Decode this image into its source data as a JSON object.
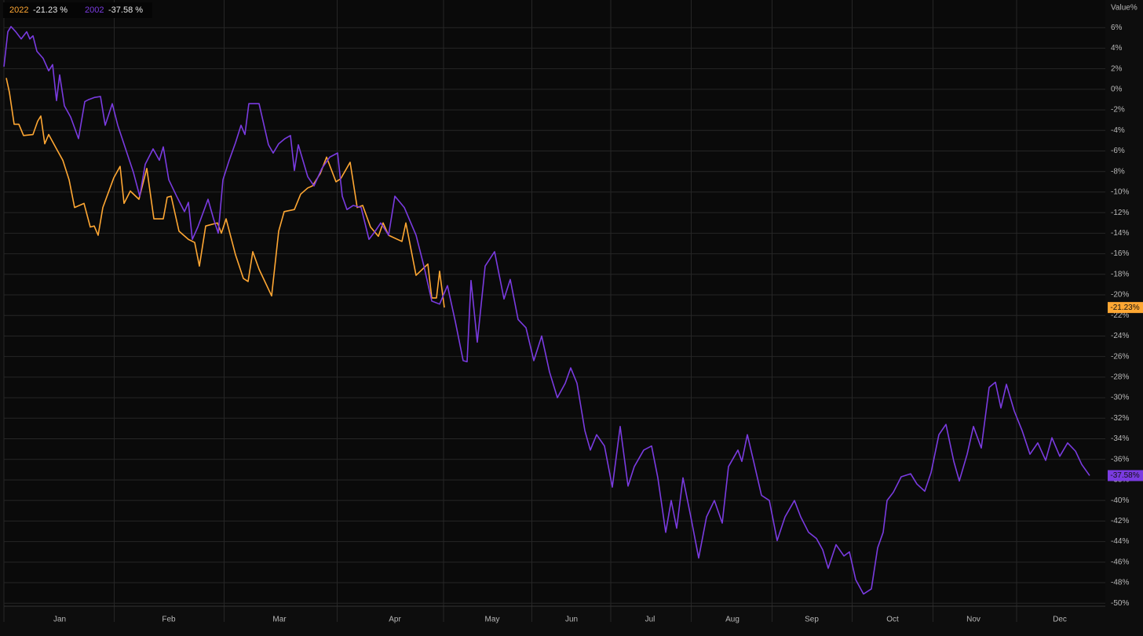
{
  "chart_data": {
    "type": "line",
    "y_label": "Value%",
    "xlim": [
      0,
      280.6
    ],
    "xticks": [
      {
        "value": 14.2,
        "label": "Jan"
      },
      {
        "value": 42,
        "label": "Feb"
      },
      {
        "value": 70.2,
        "label": "Mar"
      },
      {
        "value": 99.6,
        "label": "Apr"
      },
      {
        "value": 124.4,
        "label": "May"
      },
      {
        "value": 144.6,
        "label": "Jun"
      },
      {
        "value": 164.6,
        "label": "Jul"
      },
      {
        "value": 185.6,
        "label": "Aug"
      },
      {
        "value": 205.8,
        "label": "Sep"
      },
      {
        "value": 226.4,
        "label": "Oct"
      },
      {
        "value": 247,
        "label": "Nov"
      },
      {
        "value": 269,
        "label": "Dec"
      }
    ],
    "ylim": [
      8.686,
      -50.286
    ],
    "yticks": [
      {
        "value": 6,
        "label": "6%"
      },
      {
        "value": 4,
        "label": "4%"
      },
      {
        "value": 2,
        "label": "2%"
      },
      {
        "value": 0,
        "label": "0%"
      },
      {
        "value": -2,
        "label": "-2%"
      },
      {
        "value": -4,
        "label": "-4%"
      },
      {
        "value": -6,
        "label": "-6%"
      },
      {
        "value": -8,
        "label": "-8%"
      },
      {
        "value": -10,
        "label": "-10%"
      },
      {
        "value": -12,
        "label": "-12%"
      },
      {
        "value": -14,
        "label": "-14%"
      },
      {
        "value": -16,
        "label": "-16%"
      },
      {
        "value": -18,
        "label": "-18%"
      },
      {
        "value": -20,
        "label": "-20%"
      },
      {
        "value": -22,
        "label": "-22%"
      },
      {
        "value": -24,
        "label": "-24%"
      },
      {
        "value": -26,
        "label": "-26%"
      },
      {
        "value": -28,
        "label": "-28%"
      },
      {
        "value": -30,
        "label": "-30%"
      },
      {
        "value": -32,
        "label": "-32%"
      },
      {
        "value": -34,
        "label": "-34%"
      },
      {
        "value": -36,
        "label": "-36%"
      },
      {
        "value": -38,
        "label": "-38%"
      },
      {
        "value": -40,
        "label": "-40%"
      },
      {
        "value": -42,
        "label": "-42%"
      },
      {
        "value": -44,
        "label": "-44%"
      },
      {
        "value": -46,
        "label": "-46%"
      },
      {
        "value": -48,
        "label": "-48%"
      },
      {
        "value": -50,
        "label": "-50%"
      }
    ],
    "grid": true,
    "series": [
      {
        "name": "2022",
        "color": "#ffa733",
        "legend_value": "-21.23 %",
        "end_label": "-21.23%",
        "x": [
          0.6,
          1.4,
          2.6,
          3.8,
          5,
          7.4,
          8.6,
          9.4,
          10.4,
          11.4,
          13.4,
          15,
          16.6,
          18,
          20.4,
          22,
          23,
          24,
          25.2,
          28,
          29.6,
          30.6,
          32.2,
          34.4,
          36.4,
          38.2,
          40.6,
          41.6,
          42.6,
          44.6,
          47,
          48.6,
          49.8,
          51.4,
          54.4,
          55.4,
          56.6,
          59,
          61,
          62.2,
          63.4,
          65,
          68.2,
          70,
          71.4,
          74,
          75.6,
          77.4,
          78.6,
          80.6,
          82.2,
          84.6,
          85.8,
          88.2,
          90,
          91.4,
          93.4,
          95.4,
          96.6,
          98,
          101.4,
          102.4,
          105,
          108,
          109,
          110.2,
          111,
          112.2
        ],
        "values": [
          1.1,
          -0.3,
          -3.4,
          -3.4,
          -4.5,
          -4.4,
          -3.1,
          -2.6,
          -5.3,
          -4.4,
          -5.8,
          -6.9,
          -8.8,
          -11.5,
          -11.1,
          -13.4,
          -13.3,
          -14.2,
          -11.5,
          -8.6,
          -7.5,
          -11.1,
          -9.9,
          -10.7,
          -7.7,
          -12.6,
          -12.6,
          -10.5,
          -10.4,
          -13.8,
          -14.6,
          -14.9,
          -17.2,
          -13.3,
          -13.0,
          -14.0,
          -12.6,
          -16.1,
          -18.4,
          -18.7,
          -15.8,
          -17.5,
          -20.1,
          -13.8,
          -11.9,
          -11.7,
          -10.2,
          -9.6,
          -9.4,
          -8.2,
          -6.6,
          -9.0,
          -8.7,
          -7.1,
          -11.5,
          -11.3,
          -13.4,
          -14.3,
          -13.0,
          -14.2,
          -14.8,
          -13.0,
          -18.1,
          -17.0,
          -20.3,
          -20.3,
          -17.7,
          -21.23
        ]
      },
      {
        "name": "2002",
        "color": "#7a3be0",
        "legend_value": "-37.58 %",
        "end_label": "-37.58%",
        "x": [
          0,
          1,
          1.8,
          3,
          4.4,
          5.8,
          6.6,
          7.4,
          8.4,
          10,
          11.4,
          12.4,
          13.4,
          14.2,
          15.4,
          17,
          19,
          20.6,
          21.6,
          23,
          24.6,
          25.8,
          27.6,
          29,
          31,
          33,
          34.6,
          36,
          38,
          39.6,
          40.6,
          42,
          44,
          46,
          47,
          48,
          49.4,
          52,
          53.4,
          54.6,
          55.8,
          57.4,
          59,
          60.4,
          61.4,
          62.4,
          65,
          67.4,
          68.6,
          70,
          71.6,
          73,
          74,
          75,
          77.4,
          79,
          81,
          83,
          85,
          86.2,
          87.4,
          89,
          91,
          93,
          94.6,
          96,
          98,
          99.6,
          102,
          105,
          107,
          109,
          111,
          113,
          115,
          117,
          118,
          119,
          120.6,
          122.6,
          125,
          127.4,
          129,
          131,
          133,
          135,
          137,
          139,
          141,
          143,
          144.4,
          146,
          148,
          149.4,
          151,
          153,
          155,
          157,
          159,
          160.6,
          163,
          165,
          166.6,
          168.6,
          170,
          171.4,
          173,
          175,
          177,
          179,
          181,
          183,
          184.6,
          187,
          188,
          189.4,
          191,
          193,
          195,
          197,
          199,
          201.4,
          203,
          205,
          207,
          208.6,
          210,
          212,
          214,
          215.4,
          217,
          219,
          221,
          222.6,
          224,
          225,
          226.6,
          228.6,
          231,
          232.6,
          234.6,
          236.2,
          238.2,
          240,
          242,
          243.4,
          245.4,
          247,
          249,
          251,
          252.6,
          254,
          255.4,
          257.4,
          259.4,
          261.4,
          263.4,
          265.4,
          267,
          269,
          271,
          273,
          274.6,
          276.6
        ],
        "values": [
          2.2,
          5.6,
          6.1,
          5.6,
          4.9,
          5.6,
          4.9,
          5.2,
          3.7,
          3.0,
          1.8,
          2.4,
          -1.1,
          1.4,
          -1.6,
          -2.7,
          -4.8,
          -1.2,
          -1.0,
          -0.8,
          -0.7,
          -3.5,
          -1.4,
          -3.5,
          -5.8,
          -8.1,
          -10.4,
          -7.3,
          -5.8,
          -6.9,
          -5.6,
          -8.8,
          -10.4,
          -11.9,
          -11.0,
          -14.6,
          -13.4,
          -10.7,
          -12.6,
          -14.0,
          -8.8,
          -6.9,
          -5.2,
          -3.5,
          -4.4,
          -1.4,
          -1.4,
          -5.4,
          -6.2,
          -5.3,
          -4.8,
          -4.5,
          -7.9,
          -5.4,
          -8.5,
          -9.4,
          -7.7,
          -6.6,
          -6.2,
          -10.4,
          -11.7,
          -11.3,
          -11.5,
          -14.6,
          -13.8,
          -13.0,
          -14.2,
          -10.4,
          -11.5,
          -14.2,
          -17.2,
          -20.6,
          -20.9,
          -19.1,
          -22.6,
          -26.4,
          -26.5,
          -18.6,
          -24.6,
          -17.2,
          -15.8,
          -20.4,
          -18.5,
          -22.4,
          -23.2,
          -26.4,
          -24.0,
          -27.5,
          -30.0,
          -28.6,
          -27.1,
          -28.6,
          -33.2,
          -35.1,
          -33.6,
          -34.7,
          -38.7,
          -32.8,
          -38.6,
          -36.7,
          -35.1,
          -34.7,
          -37.8,
          -43.1,
          -40.0,
          -42.7,
          -37.8,
          -41.6,
          -45.6,
          -41.6,
          -40.0,
          -42.2,
          -36.7,
          -35.1,
          -36.2,
          -33.6,
          -36.2,
          -39.5,
          -40.0,
          -43.9,
          -41.6,
          -40.0,
          -41.6,
          -43.1,
          -43.7,
          -44.8,
          -46.6,
          -44.3,
          -45.4,
          -45.0,
          -47.7,
          -49.1,
          -48.6,
          -44.6,
          -43.1,
          -40.0,
          -39.2,
          -37.7,
          -37.4,
          -38.4,
          -39.1,
          -37.3,
          -33.6,
          -32.6,
          -36.2,
          -38.1,
          -35.5,
          -32.8,
          -34.9,
          -29.0,
          -28.5,
          -31.0,
          -28.7,
          -31.3,
          -33.2,
          -35.5,
          -34.4,
          -36.1,
          -33.9,
          -35.7,
          -34.4,
          -35.2,
          -36.5,
          -37.58
        ]
      }
    ]
  }
}
